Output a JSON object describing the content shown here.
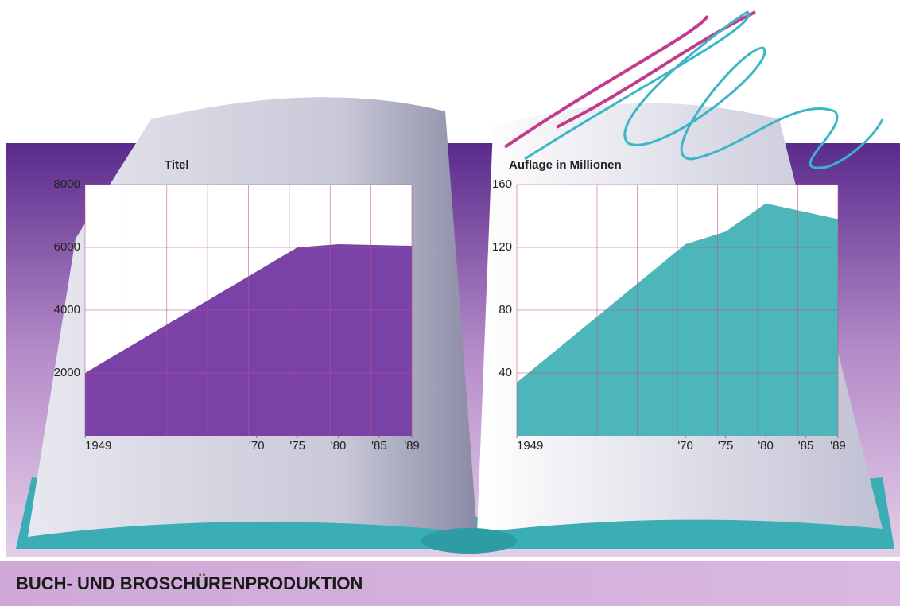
{
  "title": "BUCH- UND BROSCHÜRENPRODUKTION",
  "chart_data": [
    {
      "type": "area",
      "title": "Titel",
      "x": [
        1949,
        1975,
        1980,
        1989
      ],
      "values": [
        2000,
        6000,
        6100,
        6050
      ],
      "color": "#6b2d9c",
      "xlim": [
        1949,
        1989
      ],
      "xticks": [
        {
          "value": 1949,
          "label": "1949"
        },
        {
          "value": 1970,
          "label": "'70"
        },
        {
          "value": 1975,
          "label": "'75"
        },
        {
          "value": 1980,
          "label": "'80"
        },
        {
          "value": 1985,
          "label": "'85"
        },
        {
          "value": 1989,
          "label": "'89"
        }
      ],
      "ylim": [
        0,
        8000
      ],
      "yticks": [
        2000,
        4000,
        6000,
        8000
      ],
      "grid": true
    },
    {
      "type": "area",
      "title": "Auflage in Millionen",
      "x": [
        1949,
        1970,
        1975,
        1980,
        1989
      ],
      "values": [
        34,
        122,
        130,
        148,
        138
      ],
      "color": "#3aaeb4",
      "xlim": [
        1949,
        1989
      ],
      "xticks": [
        {
          "value": 1949,
          "label": "1949"
        },
        {
          "value": 1970,
          "label": "'70"
        },
        {
          "value": 1975,
          "label": "'75"
        },
        {
          "value": 1980,
          "label": "'80"
        },
        {
          "value": 1985,
          "label": "'85"
        },
        {
          "value": 1989,
          "label": "'89"
        }
      ],
      "ylim": [
        0,
        160
      ],
      "yticks": [
        40,
        80,
        120,
        160
      ],
      "grid": true
    }
  ]
}
